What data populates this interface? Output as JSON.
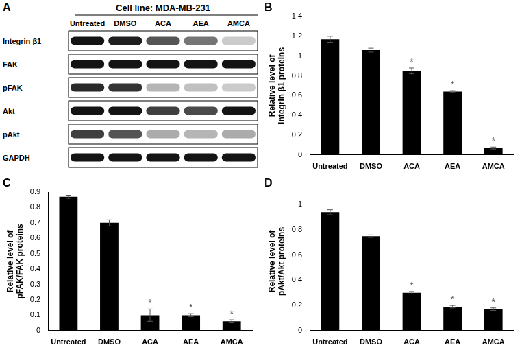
{
  "blot": {
    "panel": "A",
    "title": "Cell line: MDA-MB-231",
    "lanes": [
      "Untreated",
      "DMSO",
      "ACA",
      "AEA",
      "AMCA"
    ],
    "rows": [
      {
        "label": "Integrin β1",
        "intensities": [
          1,
          0.95,
          0.7,
          0.55,
          0.15
        ]
      },
      {
        "label": "FAK",
        "intensities": [
          1,
          1,
          1,
          1,
          1
        ]
      },
      {
        "label": "pFAK",
        "intensities": [
          0.9,
          0.85,
          0.25,
          0.2,
          0.15
        ]
      },
      {
        "label": "Akt",
        "intensities": [
          1,
          1,
          0.8,
          0.75,
          1
        ]
      },
      {
        "label": "pAkt",
        "intensities": [
          0.8,
          0.7,
          0.3,
          0.25,
          0.3
        ]
      },
      {
        "label": "GAPDH",
        "intensities": [
          1,
          1,
          1,
          1,
          1
        ]
      }
    ]
  },
  "chart_data": [
    {
      "type": "bar",
      "panel": "B",
      "y_label": [
        "Relative level of",
        "integrin β1 proteins"
      ],
      "categories": [
        "Untreated",
        "DMSO",
        "ACA",
        "AEA",
        "AMCA"
      ],
      "values": [
        1.17,
        1.06,
        0.85,
        0.64,
        0.07
      ],
      "errors": [
        0.03,
        0.02,
        0.03,
        0.01,
        0.01
      ],
      "annotations": [
        null,
        null,
        "*",
        "*",
        "*"
      ],
      "color": "#000000",
      "ylim": [
        0,
        1.4
      ],
      "yticks": [
        0,
        0.2,
        0.4,
        0.6,
        0.8,
        1,
        1.2,
        1.4
      ],
      "grid": false
    },
    {
      "type": "bar",
      "panel": "C",
      "y_label": [
        "Relative level of",
        "pFAK/FAK proteins"
      ],
      "categories": [
        "Untreated",
        "DMSO",
        "ACA",
        "AEA",
        "AMCA"
      ],
      "values": [
        0.87,
        0.7,
        0.1,
        0.1,
        0.06
      ],
      "errors": [
        0.01,
        0.02,
        0.04,
        0.01,
        0.01
      ],
      "annotations": [
        null,
        null,
        "*",
        "*",
        "*"
      ],
      "color": "#000000",
      "ylim": [
        0,
        0.9
      ],
      "yticks": [
        0,
        0.1,
        0.2,
        0.3,
        0.4,
        0.5,
        0.6,
        0.7,
        0.8,
        0.9
      ],
      "grid": false
    },
    {
      "type": "bar",
      "panel": "D",
      "y_label": [
        "Relative level of",
        "pAkt/Akt proteins"
      ],
      "categories": [
        "Untreated",
        "DMSO",
        "ACA",
        "AEA",
        "AMCA"
      ],
      "values": [
        0.94,
        0.75,
        0.3,
        0.19,
        0.17
      ],
      "errors": [
        0.02,
        0.01,
        0.01,
        0.01,
        0.01
      ],
      "annotations": [
        null,
        null,
        "*",
        "*",
        "*"
      ],
      "color": "#000000",
      "ylim": [
        0,
        1.1
      ],
      "yticks": [
        0,
        0.2,
        0.4,
        0.6,
        0.8,
        1
      ],
      "grid": false
    }
  ]
}
